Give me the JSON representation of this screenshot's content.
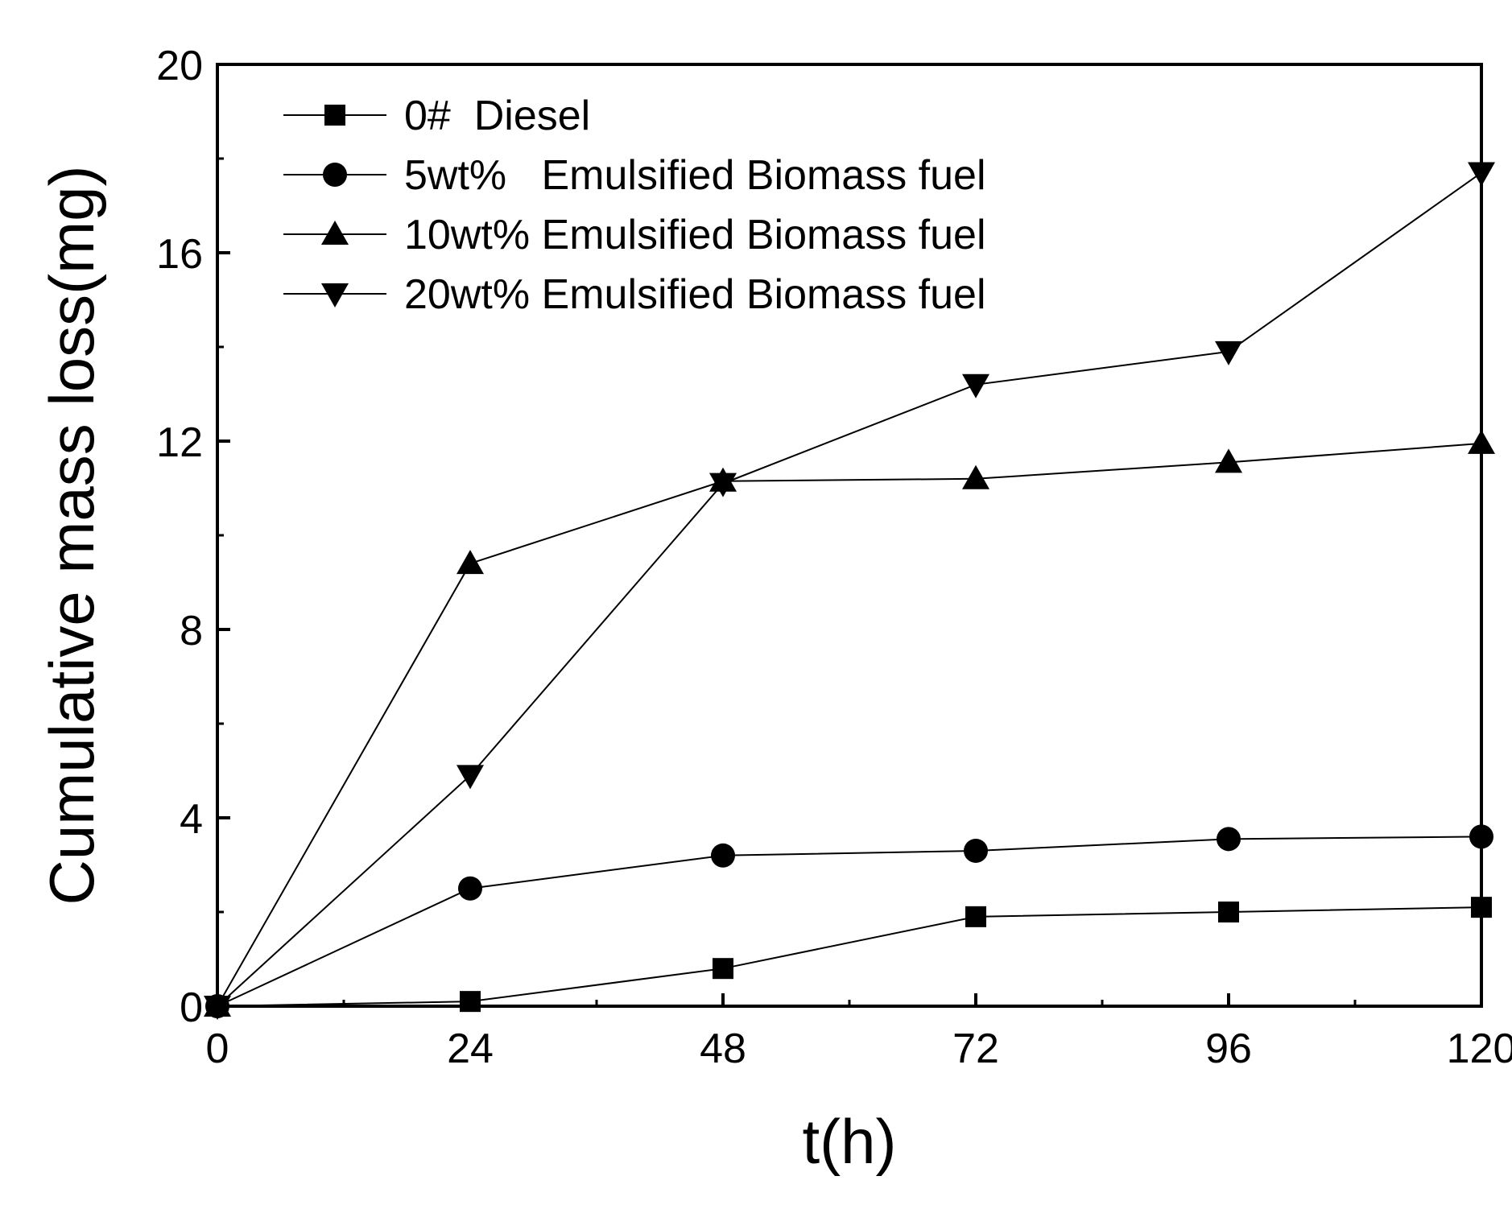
{
  "chart_data": {
    "type": "line",
    "title": "",
    "xlabel": "t(h)",
    "ylabel": "Cumulative mass loss(mg)",
    "xlim": [
      0,
      120
    ],
    "ylim": [
      0,
      20
    ],
    "x_ticks": [
      "0",
      "24",
      "48",
      "72",
      "96",
      "120"
    ],
    "y_ticks": [
      "0",
      "4",
      "8",
      "12",
      "16",
      "20"
    ],
    "grid": false,
    "legend_position": "top-left",
    "x": [
      0,
      24,
      48,
      72,
      96,
      120
    ],
    "series": [
      {
        "name": "0#  Diesel",
        "marker": "square",
        "values": [
          0,
          0.1,
          0.8,
          1.9,
          2.0,
          2.1
        ]
      },
      {
        "name": "5wt%   Emulsified Biomass fuel",
        "marker": "circle",
        "values": [
          0,
          2.5,
          3.2,
          3.3,
          3.55,
          3.6
        ]
      },
      {
        "name": "10wt% Emulsified Biomass fuel",
        "marker": "triangle-up",
        "values": [
          0,
          9.4,
          11.15,
          11.2,
          11.55,
          11.95
        ]
      },
      {
        "name": "20wt% Emulsified Biomass fuel",
        "marker": "triangle-down",
        "values": [
          0,
          4.9,
          11.1,
          13.2,
          13.9,
          17.7
        ]
      }
    ]
  }
}
